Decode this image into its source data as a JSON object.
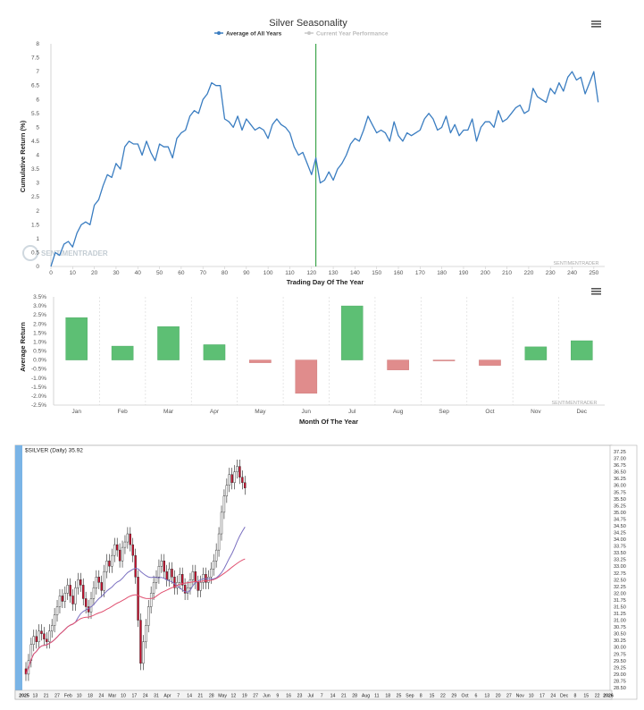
{
  "top_chart": {
    "title": "Silver Seasonality",
    "legend": [
      {
        "label": "Average of All Years",
        "color": "#3a7dc1",
        "active": true
      },
      {
        "label": "Current Year Performance",
        "color": "#c8c8c8",
        "active": false
      }
    ],
    "ylabel": "Cumulative Return (%)",
    "xlabel": "Trading Day Of The Year",
    "watermark": "SENTIMENTRADER",
    "logo_text": "SENTIMENTRADER",
    "menu_icon": "hamburger-menu-icon"
  },
  "bottom_chart": {
    "ylabel": "Average Return",
    "xlabel": "Month Of The Year",
    "watermark": "SENTIMENTRADER",
    "menu_icon": "hamburger-menu-icon"
  },
  "price_chart": {
    "header": "$SILVER (Daily) 35.92",
    "last_price": 35.92,
    "right_axis_labels": [
      "37.25",
      "37.00",
      "36.75",
      "36.50",
      "36.25",
      "36.00",
      "35.75",
      "35.50",
      "35.25",
      "35.00",
      "34.75",
      "34.50",
      "34.25",
      "34.00",
      "33.75",
      "33.50",
      "33.25",
      "33.00",
      "32.75",
      "32.50",
      "32.25",
      "32.00",
      "31.75",
      "31.50",
      "31.25",
      "31.00",
      "30.75",
      "30.50",
      "30.25",
      "30.00",
      "29.75",
      "29.50",
      "29.25",
      "29.00",
      "28.75",
      "28.50"
    ],
    "x_axis_labels": [
      "2025",
      "13",
      "21",
      "27",
      "Feb",
      "10",
      "18",
      "24",
      "Mar",
      "10",
      "17",
      "24",
      "31",
      "Apr",
      "7",
      "14",
      "21",
      "28",
      "May",
      "12",
      "19",
      "27",
      "Jun",
      "9",
      "16",
      "23",
      "Jul",
      "7",
      "14",
      "21",
      "28",
      "Aug",
      "11",
      "18",
      "25",
      "Sep",
      "8",
      "15",
      "22",
      "29",
      "Oct",
      "6",
      "13",
      "20",
      "27",
      "Nov",
      "10",
      "17",
      "24",
      "Dec",
      "8",
      "15",
      "22",
      "2026"
    ],
    "sma_colors": {
      "fast": "#7a6fc0",
      "slow": "#e05070"
    },
    "candle_up": "#ffffff",
    "candle_down": "#c8102e",
    "range": [
      28.5,
      37.25
    ]
  },
  "chart_data": [
    {
      "type": "line",
      "title": "Silver Seasonality",
      "xlabel": "Trading Day Of The Year",
      "ylabel": "Cumulative Return (%)",
      "xlim": [
        0,
        255
      ],
      "ylim": [
        0,
        8
      ],
      "x_ticks": [
        0,
        10,
        20,
        30,
        40,
        50,
        60,
        70,
        80,
        90,
        100,
        110,
        120,
        130,
        140,
        150,
        160,
        170,
        180,
        190,
        200,
        210,
        220,
        230,
        240,
        250
      ],
      "y_ticks": [
        0,
        0.5,
        1,
        1.5,
        2,
        2.5,
        3,
        3.5,
        4,
        4.5,
        5,
        5.5,
        6,
        6.5,
        7,
        7.5,
        8
      ],
      "vertical_marker_x": 122,
      "series": [
        {
          "name": "Average of All Years",
          "x": [
            0,
            2,
            4,
            6,
            8,
            10,
            12,
            14,
            16,
            18,
            20,
            22,
            24,
            26,
            28,
            30,
            32,
            34,
            36,
            38,
            40,
            42,
            44,
            46,
            48,
            50,
            52,
            54,
            56,
            58,
            60,
            62,
            64,
            66,
            68,
            70,
            72,
            74,
            76,
            78,
            80,
            82,
            84,
            86,
            88,
            90,
            92,
            94,
            96,
            98,
            100,
            102,
            104,
            106,
            108,
            110,
            112,
            114,
            116,
            118,
            120,
            122,
            124,
            126,
            128,
            130,
            132,
            134,
            136,
            138,
            140,
            142,
            144,
            146,
            148,
            150,
            152,
            154,
            156,
            158,
            160,
            162,
            164,
            166,
            168,
            170,
            172,
            174,
            176,
            178,
            180,
            182,
            184,
            186,
            188,
            190,
            192,
            194,
            196,
            198,
            200,
            202,
            204,
            206,
            208,
            210,
            212,
            214,
            216,
            218,
            220,
            222,
            224,
            226,
            228,
            230,
            232,
            234,
            236,
            238,
            240,
            242,
            244,
            246,
            248,
            250,
            252
          ],
          "y": [
            0,
            0.5,
            0.4,
            0.8,
            0.9,
            0.7,
            1.2,
            1.5,
            1.6,
            1.5,
            2.2,
            2.4,
            2.9,
            3.3,
            3.2,
            3.7,
            3.5,
            4.3,
            4.5,
            4.4,
            4.4,
            4.0,
            4.5,
            4.1,
            3.8,
            4.4,
            4.3,
            4.3,
            3.9,
            4.6,
            4.8,
            4.9,
            5.4,
            5.6,
            5.5,
            6.0,
            6.2,
            6.6,
            6.5,
            6.5,
            5.3,
            5.2,
            5.0,
            5.4,
            4.9,
            5.3,
            5.1,
            4.9,
            5.0,
            4.9,
            4.6,
            5.1,
            5.3,
            5.1,
            5.0,
            4.8,
            4.3,
            4.0,
            4.1,
            3.7,
            3.3,
            3.9,
            3.0,
            3.1,
            3.4,
            3.1,
            3.5,
            3.7,
            4.0,
            4.4,
            4.6,
            4.5,
            4.9,
            5.4,
            5.1,
            4.8,
            4.9,
            4.8,
            4.5,
            5.2,
            4.7,
            4.5,
            4.8,
            4.7,
            4.8,
            4.9,
            5.3,
            5.5,
            5.3,
            4.9,
            5.0,
            5.4,
            4.8,
            5.1,
            4.7,
            4.9,
            4.9,
            5.3,
            4.5,
            5.0,
            5.2,
            5.2,
            5.0,
            5.6,
            5.2,
            5.3,
            5.5,
            5.7,
            5.8,
            5.5,
            5.6,
            6.4,
            6.1,
            6.0,
            5.9,
            6.4,
            6.2,
            6.6,
            6.3,
            6.8,
            7.0,
            6.7,
            6.8,
            6.2,
            6.6,
            7.0,
            5.9
          ]
        }
      ]
    },
    {
      "type": "bar",
      "xlabel": "Month Of The Year",
      "ylabel": "Average Return",
      "ylim": [
        -2.5,
        3.5
      ],
      "y_ticks": [
        "3.5%",
        "3.0%",
        "2.5%",
        "2.0%",
        "1.5%",
        "1.0%",
        "0.5%",
        "0.0%",
        "-0.5%",
        "-1.0%",
        "-1.5%",
        "-2.0%",
        "-2.5%"
      ],
      "categories": [
        "Jan",
        "Feb",
        "Mar",
        "Apr",
        "May",
        "Jun",
        "Jul",
        "Aug",
        "Sep",
        "Oct",
        "Nov",
        "Dec"
      ],
      "values": [
        2.35,
        0.77,
        1.85,
        0.85,
        -0.15,
        -1.85,
        3.0,
        -0.55,
        -0.05,
        -0.3,
        0.73,
        1.07
      ],
      "colors": {
        "positive": "#5dbf74",
        "negative": "#e08c8c"
      }
    },
    {
      "type": "candlestick",
      "title": "$SILVER (Daily) 35.92",
      "ylim": [
        28.5,
        37.25
      ]
    }
  ]
}
